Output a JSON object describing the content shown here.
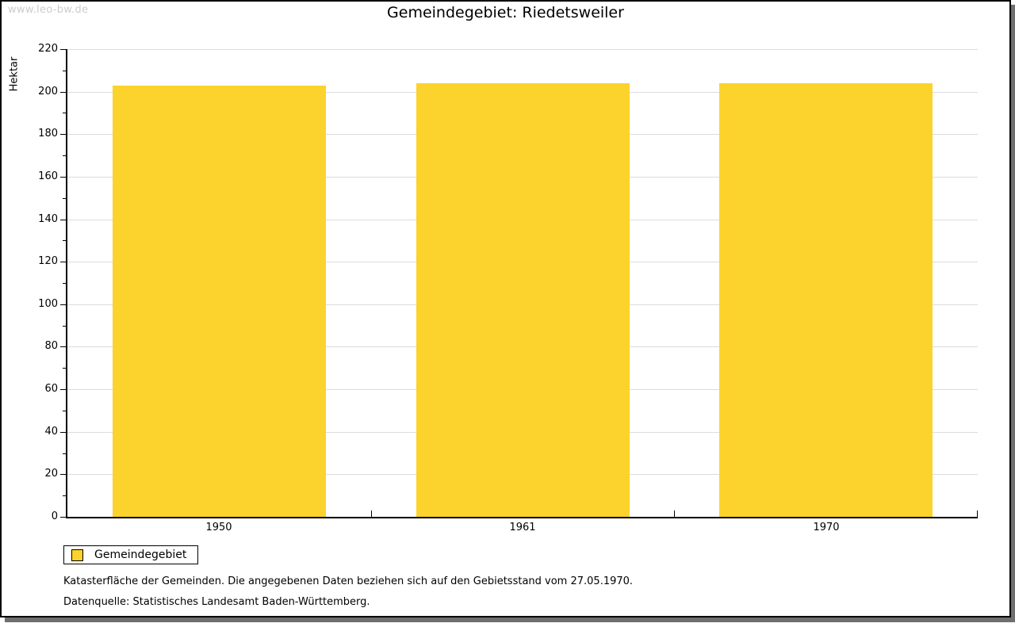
{
  "watermark": "www.leo-bw.de",
  "title": "Gemeindegebiet: Riedetsweiler",
  "chart_data": {
    "type": "bar",
    "categories": [
      "1950",
      "1961",
      "1970"
    ],
    "series": [
      {
        "name": "Gemeindegebiet",
        "values": [
          203,
          204,
          204
        ]
      }
    ],
    "title": "Gemeindegebiet: Riedetsweiler",
    "xlabel": "",
    "ylabel": "Hektar",
    "ylim": [
      0,
      220
    ],
    "y_major_step": 20,
    "y_minor_step": 10,
    "grid": "horizontal-major",
    "legend_position": "bottom-left"
  },
  "legend": {
    "items": [
      {
        "label": "Gemeindegebiet",
        "color": "#FCD32C"
      }
    ]
  },
  "notes": [
    "Katasterfläche der Gemeinden. Die angegebenen Daten beziehen sich auf den Gebietsstand vom 27.05.1970.",
    "Datenquelle: Statistisches Landesamt Baden-Württemberg."
  ],
  "colors": {
    "bar": "#FCD32C",
    "grid": "#DCDCDC",
    "axis": "#000000",
    "shadow": "#6F6F6F",
    "watermark": "#CCCCCC"
  }
}
